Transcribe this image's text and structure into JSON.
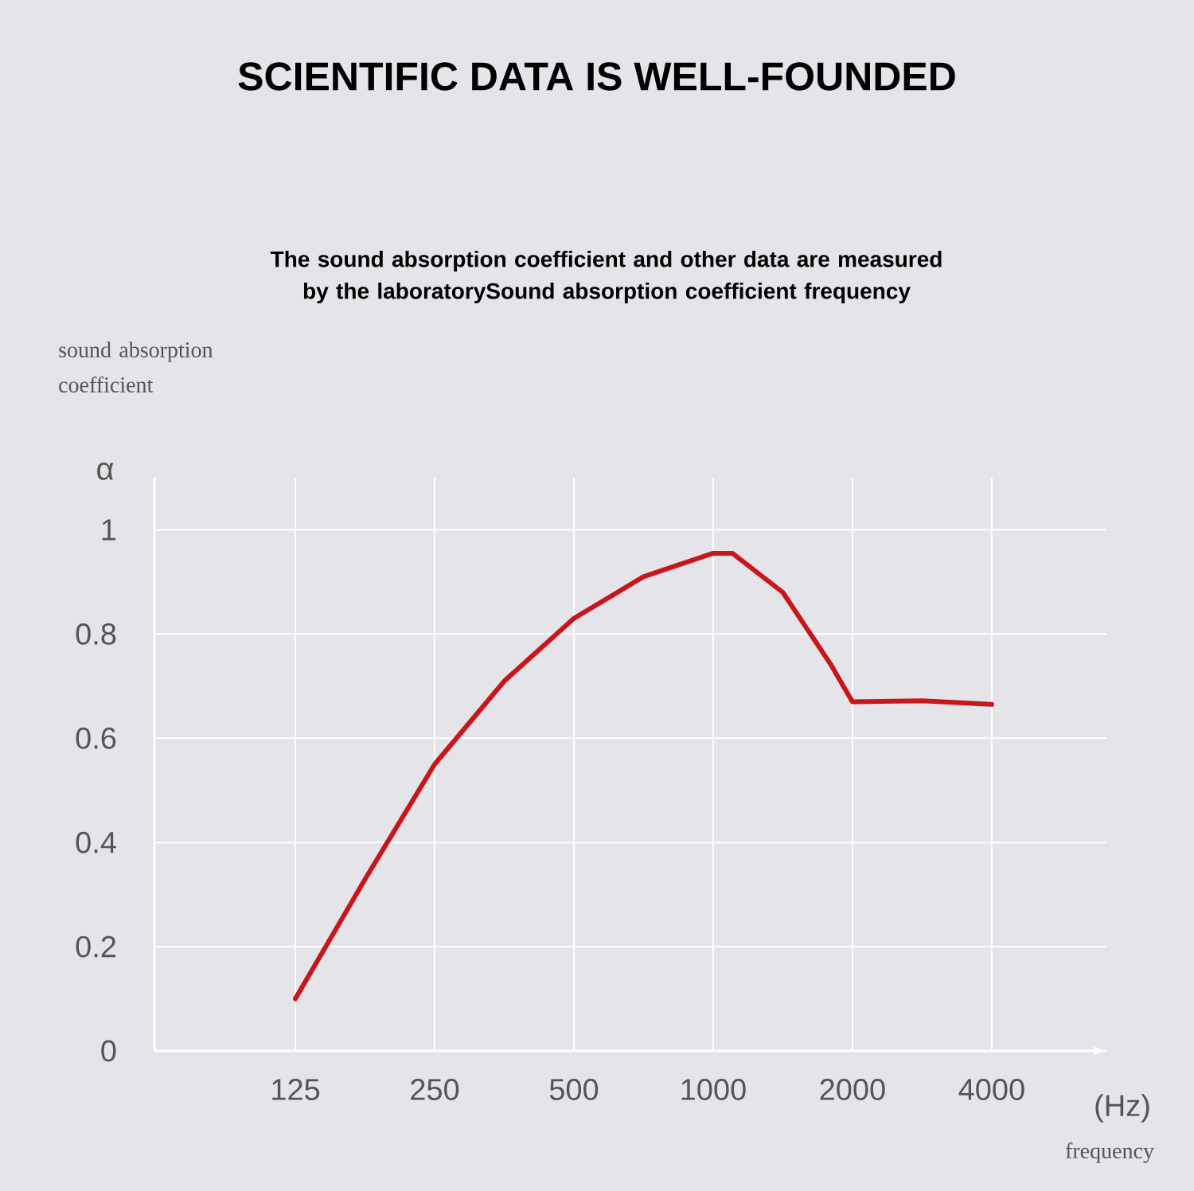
{
  "chart_data": {
    "type": "line",
    "title": "SCIENTIFIC DATA IS WELL-FOUNDED",
    "subtitle": "The sound absorption coefficient and other data are measured by the laboratorySound absorption coefficient frequency",
    "xlabel": "frequency",
    "ylabel": "sound absorption coefficient",
    "annotations": [
      "α",
      "(Hz)"
    ],
    "series": [
      {
        "color": "#c8161d",
        "x": [
          125,
          177,
          250,
          354,
          500,
          707,
          1000,
          1100,
          1414,
          1800,
          2000,
          2828,
          4000
        ],
        "values": [
          0.1,
          0.33,
          0.55,
          0.71,
          0.83,
          0.91,
          0.955,
          0.955,
          0.88,
          0.74,
          0.67,
          0.672,
          0.665
        ]
      }
    ],
    "log": "x",
    "xlim": [
      62,
      7080
    ],
    "ylim": [
      0,
      1.1
    ],
    "xticks": [
      125,
      250,
      500,
      1000,
      2000,
      4000
    ],
    "yticks": [
      0,
      0.2,
      0.4,
      0.6,
      0.8,
      1
    ],
    "grid": true
  }
}
